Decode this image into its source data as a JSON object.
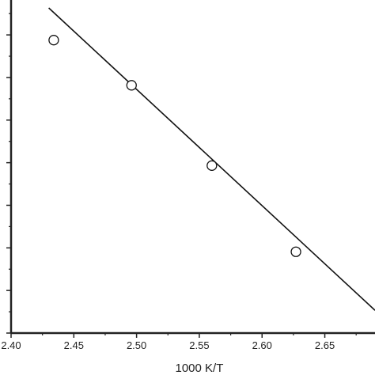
{
  "chart_data": {
    "type": "scatter",
    "xlabel": "1000 K/T",
    "ylabel": "",
    "xlim": [
      2.4,
      2.69
    ],
    "ylim": [
      0.0,
      1.0
    ],
    "x_ticks": [
      2.4,
      2.45,
      2.5,
      2.55,
      2.6,
      2.65
    ],
    "x_tick_labels": [
      "2.40",
      "2.45",
      "2.50",
      "2.55",
      "2.60",
      "2.65"
    ],
    "grid": false,
    "legend": "none",
    "series": [
      {
        "kind": "points",
        "marker": "open-circle",
        "x": [
          2.434,
          2.496,
          2.56,
          2.627
        ],
        "y": [
          0.901,
          0.762,
          0.515,
          0.25
        ]
      },
      {
        "kind": "fit-line",
        "x": [
          2.43,
          2.69
        ],
        "y": [
          1.0,
          0.07
        ]
      }
    ]
  }
}
